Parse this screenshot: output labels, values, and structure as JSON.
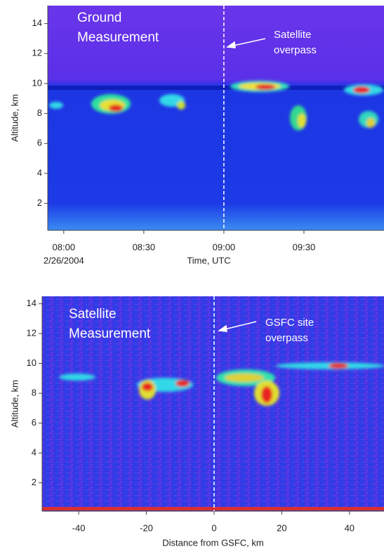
{
  "chart_data": [
    {
      "type": "heatmap",
      "y_label": "Altitude, km",
      "x_label": "Time, UTC",
      "x_date_label": "2/26/2004",
      "xlim": [
        "07:54",
        "10:00"
      ],
      "xticks": [
        "08:00",
        "08:30",
        "09:00",
        "09:30"
      ],
      "ylim": [
        0.2,
        15.2
      ],
      "yticks": [
        2,
        4,
        6,
        8,
        10,
        12,
        14
      ],
      "marker_x": "09:00",
      "annotations": [
        {
          "lines": [
            "Ground",
            "Measurement"
          ]
        },
        {
          "lines": [
            "Satellite",
            "overpass"
          ]
        }
      ]
    },
    {
      "type": "heatmap",
      "y_label": "Altitude, km",
      "x_label": "Distance from GSFC, km",
      "xlim": [
        -50.8,
        50.2
      ],
      "xticks": [
        -40,
        -20,
        0,
        20,
        40
      ],
      "ylim": [
        0.1,
        14.5
      ],
      "yticks": [
        2,
        4,
        6,
        8,
        10,
        12,
        14
      ],
      "marker_x": 0,
      "annotations": [
        {
          "lines": [
            "Satellite",
            "Measurement"
          ]
        },
        {
          "lines": [
            "GSFC site",
            "overpass"
          ]
        }
      ]
    }
  ]
}
